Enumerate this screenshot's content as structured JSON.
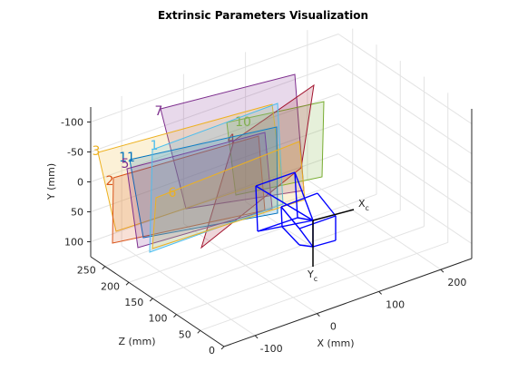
{
  "chart_data": {
    "type": "extrinsics-3d",
    "title": "Extrinsic Parameters Visualization",
    "xlabel": "X (mm)",
    "ylabel": "Y (mm)",
    "zlabel": "Z (mm)",
    "xlim": [
      -150,
      250
    ],
    "ylim": [
      -125,
      125
    ],
    "zlim": [
      0,
      280
    ],
    "xticks": [
      -100,
      0,
      100,
      200
    ],
    "yticks": [
      -100,
      -50,
      0,
      50,
      100
    ],
    "zticks": [
      0,
      50,
      100,
      150,
      200,
      250
    ],
    "grid": true,
    "planes": [
      {
        "name": "7",
        "color": "#7e2f8e"
      },
      {
        "name": "10",
        "color": "#77ac30"
      },
      {
        "name": "4",
        "color": "#a2142f"
      },
      {
        "name": "3",
        "color": "#edb120"
      },
      {
        "name": "2",
        "color": "#d95319"
      },
      {
        "name": "11",
        "color": "#0072bd"
      },
      {
        "name": "5",
        "color": "#7e2f8e"
      },
      {
        "name": "1",
        "color": "#4dbeee"
      },
      {
        "name": "6",
        "color": "#edb120"
      }
    ],
    "camera": {
      "color": "#0000ff",
      "x_axis": {
        "main": "X",
        "sub": "c"
      },
      "y_axis": {
        "main": "Y",
        "sub": "c"
      }
    }
  }
}
